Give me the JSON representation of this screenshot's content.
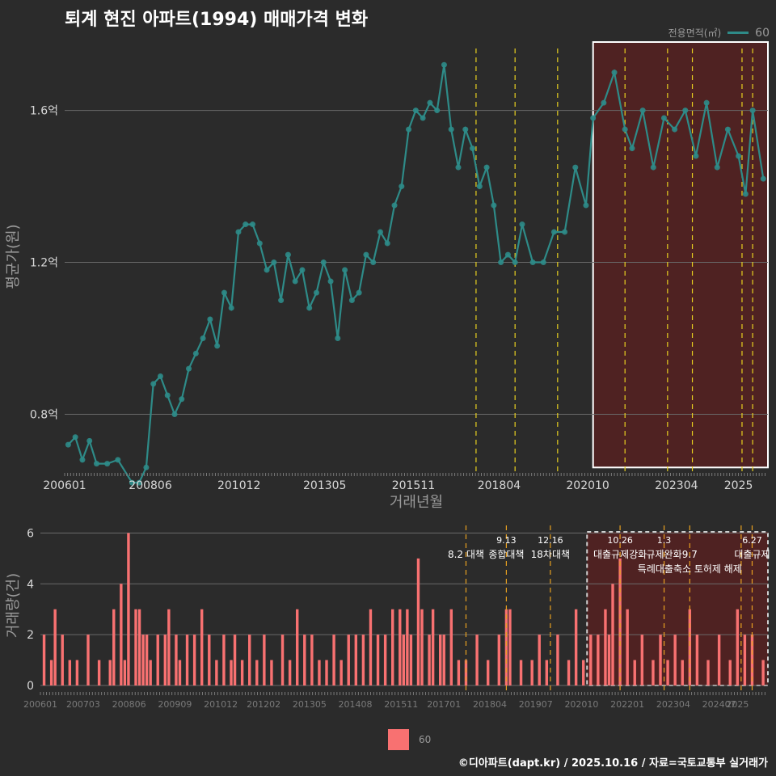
{
  "chart_data": [
    {
      "type": "line",
      "title": "퇴계 현진 아파트(1994) 매매가격 변화",
      "xlabel": "거래년월",
      "ylabel": "평균가(원)",
      "legend_title": "전용면적(㎡)",
      "legend_entries": [
        "60"
      ],
      "x_ticks": [
        "200601",
        "200806",
        "201012",
        "201305",
        "201511",
        "201804",
        "202010",
        "202304",
        "2025"
      ],
      "y_ticks": [
        "0.8억",
        "1.2억",
        "1.6억"
      ],
      "y_tick_values": [
        0.8,
        1.2,
        1.6
      ],
      "ylim": [
        0.65,
        1.78
      ],
      "xlim": [
        2006.0,
        2025.83
      ],
      "series": [
        {
          "name": "60",
          "color": "#2e8b88",
          "x": [
            2006.1,
            2006.3,
            2006.5,
            2006.7,
            2006.9,
            2007.2,
            2007.5,
            2007.9,
            2008.1,
            2008.3,
            2008.5,
            2008.7,
            2008.9,
            2009.1,
            2009.3,
            2009.5,
            2009.7,
            2009.9,
            2010.1,
            2010.3,
            2010.5,
            2010.7,
            2010.9,
            2011.1,
            2011.3,
            2011.5,
            2011.7,
            2011.9,
            2012.1,
            2012.3,
            2012.5,
            2012.7,
            2012.9,
            2013.1,
            2013.3,
            2013.5,
            2013.7,
            2013.9,
            2014.1,
            2014.3,
            2014.5,
            2014.7,
            2014.9,
            2015.1,
            2015.3,
            2015.5,
            2015.7,
            2015.9,
            2016.1,
            2016.3,
            2016.5,
            2016.7,
            2016.9,
            2017.1,
            2017.3,
            2017.5,
            2017.7,
            2017.9,
            2018.1,
            2018.3,
            2018.5,
            2018.7,
            2018.9,
            2019.2,
            2019.5,
            2019.8,
            2020.1,
            2020.4,
            2020.7,
            2020.9,
            2021.2,
            2021.5,
            2021.8,
            2022.0,
            2022.3,
            2022.6,
            2022.9,
            2023.2,
            2023.5,
            2023.8,
            2024.1,
            2024.4,
            2024.7,
            2025.0,
            2025.2,
            2025.4,
            2025.7
          ],
          "y": [
            0.72,
            0.74,
            0.68,
            0.73,
            0.67,
            0.67,
            0.68,
            0.62,
            0.62,
            0.66,
            0.88,
            0.9,
            0.85,
            0.8,
            0.84,
            0.92,
            0.96,
            1.0,
            1.05,
            0.98,
            1.12,
            1.08,
            1.28,
            1.3,
            1.3,
            1.25,
            1.18,
            1.2,
            1.1,
            1.22,
            1.15,
            1.18,
            1.08,
            1.12,
            1.2,
            1.15,
            1.0,
            1.18,
            1.1,
            1.12,
            1.22,
            1.2,
            1.28,
            1.25,
            1.35,
            1.4,
            1.55,
            1.6,
            1.58,
            1.62,
            1.6,
            1.72,
            1.55,
            1.45,
            1.55,
            1.5,
            1.4,
            1.45,
            1.35,
            1.2,
            1.22,
            1.2,
            1.3,
            1.2,
            1.2,
            1.28,
            1.28,
            1.45,
            1.35,
            1.58,
            1.62,
            1.7,
            1.55,
            1.5,
            1.6,
            1.45,
            1.58,
            1.55,
            1.6,
            1.48,
            1.62,
            1.45,
            1.55,
            1.48,
            1.38,
            1.6,
            1.42
          ]
        }
      ],
      "vlines_x": [
        2017.6,
        2018.7,
        2019.9,
        2021.8,
        2023.0,
        2023.7,
        2025.1,
        2025.4
      ],
      "highlight_x": [
        2020.9,
        2025.83
      ],
      "highlight_y": [
        0.66,
        1.78
      ]
    },
    {
      "type": "bar",
      "ylabel": "거래량(건)",
      "legend_entries": [
        "60"
      ],
      "x_ticks": [
        "200601",
        "200703",
        "200806",
        "200909",
        "201012",
        "201202",
        "201305",
        "201408",
        "201511",
        "201701",
        "201804",
        "201907",
        "202010",
        "202201",
        "202304",
        "202407",
        "2025"
      ],
      "y_ticks": [
        "0",
        "2",
        "4",
        "6"
      ],
      "y_tick_values": [
        0,
        2,
        4,
        6
      ],
      "ylim": [
        0,
        6.3
      ],
      "xlim": [
        2006.0,
        2025.83
      ],
      "series": [
        {
          "name": "60",
          "color": "#f87171",
          "x": [
            2006.1,
            2006.3,
            2006.4,
            2006.6,
            2006.8,
            2007.0,
            2007.3,
            2007.6,
            2007.9,
            2008.0,
            2008.2,
            2008.3,
            2008.4,
            2008.6,
            2008.7,
            2008.8,
            2008.9,
            2009.0,
            2009.2,
            2009.4,
            2009.5,
            2009.7,
            2009.8,
            2010.0,
            2010.2,
            2010.4,
            2010.6,
            2010.8,
            2011.0,
            2011.2,
            2011.3,
            2011.5,
            2011.7,
            2011.9,
            2012.1,
            2012.3,
            2012.6,
            2012.8,
            2013.0,
            2013.2,
            2013.4,
            2013.6,
            2013.8,
            2014.0,
            2014.2,
            2014.4,
            2014.6,
            2014.8,
            2015.0,
            2015.2,
            2015.4,
            2015.6,
            2015.8,
            2015.9,
            2016.0,
            2016.1,
            2016.3,
            2016.4,
            2016.6,
            2016.7,
            2016.9,
            2017.0,
            2017.2,
            2017.4,
            2017.6,
            2017.9,
            2018.2,
            2018.5,
            2018.7,
            2018.8,
            2019.1,
            2019.4,
            2019.6,
            2019.8,
            2020.1,
            2020.4,
            2020.6,
            2020.8,
            2021.0,
            2021.2,
            2021.4,
            2021.5,
            2021.6,
            2021.8,
            2022.0,
            2022.2,
            2022.4,
            2022.7,
            2022.9,
            2023.1,
            2023.3,
            2023.5,
            2023.7,
            2023.9,
            2024.2,
            2024.5,
            2024.8,
            2025.0,
            2025.2,
            2025.4,
            2025.7
          ],
          "y": [
            2,
            1,
            3,
            2,
            1,
            1,
            2,
            1,
            1,
            3,
            4,
            1,
            6,
            3,
            3,
            2,
            2,
            1,
            2,
            2,
            3,
            2,
            1,
            2,
            2,
            3,
            2,
            1,
            2,
            1,
            2,
            1,
            2,
            1,
            2,
            1,
            2,
            1,
            3,
            2,
            2,
            1,
            1,
            2,
            1,
            2,
            2,
            2,
            3,
            2,
            2,
            3,
            3,
            2,
            3,
            2,
            5,
            3,
            2,
            3,
            2,
            2,
            3,
            1,
            1,
            2,
            1,
            2,
            3,
            3,
            1,
            1,
            2,
            1,
            2,
            1,
            3,
            1,
            2,
            2,
            3,
            2,
            4,
            5,
            3,
            1,
            2,
            1,
            2,
            1,
            2,
            1,
            3,
            2,
            1,
            2,
            1,
            3,
            2,
            2,
            1
          ]
        }
      ],
      "vlines_x": [
        2017.6,
        2018.7,
        2019.9,
        2021.8,
        2023.0,
        2023.7,
        2025.1,
        2025.4
      ],
      "highlight_x": [
        2020.9,
        2025.83
      ],
      "annotations": [
        {
          "x": 2017.6,
          "date": "",
          "label": "8.2 대책",
          "row": 1
        },
        {
          "x": 2018.7,
          "date": "9.13",
          "label": "종합대책",
          "row": 1
        },
        {
          "x": 2019.9,
          "date": "12.16",
          "label": "18차대책",
          "row": 1
        },
        {
          "x": 2021.8,
          "date": "10.26",
          "label": "대출규제강화",
          "row": 1
        },
        {
          "x": 2023.0,
          "date": "1.3",
          "label": "규제완화",
          "row": 1
        },
        {
          "x": 2023.7,
          "date": "",
          "label": "9.7",
          "row": 1
        },
        {
          "x": 2023.7,
          "date": "",
          "label": "특례대출축소 토허제 해제",
          "row": 2
        },
        {
          "x": 2025.4,
          "date": "6.27",
          "label": "대출규제",
          "row": 1
        }
      ]
    }
  ],
  "footer": "©디아파트(dapt.kr) / 2025.10.16 / 자료=국토교통부 실거래가"
}
